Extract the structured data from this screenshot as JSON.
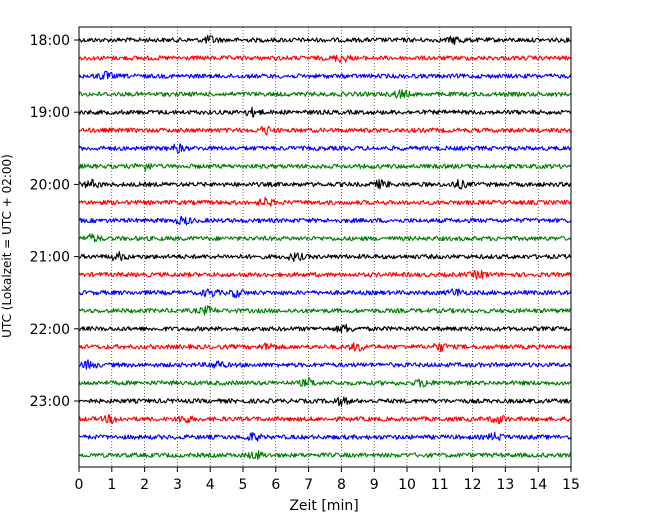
{
  "chart_data": {
    "type": "line",
    "title": "",
    "xlabel": "Zeit  [min]",
    "ylabel": "UTC (Lokalzeit = UTC + 02:00)",
    "xlim": [
      0,
      15
    ],
    "xticks": [
      "0",
      "1",
      "2",
      "3",
      "4",
      "5",
      "6",
      "7",
      "8",
      "9",
      "10",
      "11",
      "12",
      "13",
      "14",
      "15"
    ],
    "x_grid": "dotted vertical lines at each minute",
    "trace_interval_min": 15,
    "ytick_labels": [
      "18:00",
      "19:00",
      "20:00",
      "21:00",
      "22:00",
      "23:00"
    ],
    "trace_colors": [
      "#000000",
      "#ff0000",
      "#0000ff",
      "#008000"
    ],
    "traces": [
      {
        "start": "18:00",
        "color": "#000000",
        "events_min": [
          4.0,
          11.5
        ]
      },
      {
        "start": "18:15",
        "color": "#ff0000",
        "events_min": [
          8.0
        ]
      },
      {
        "start": "18:30",
        "color": "#0000ff",
        "events_min": [
          0.8
        ]
      },
      {
        "start": "18:45",
        "color": "#008000",
        "events_min": [
          9.8
        ]
      },
      {
        "start": "19:00",
        "color": "#000000",
        "events_min": [
          5.3
        ]
      },
      {
        "start": "19:15",
        "color": "#ff0000",
        "events_min": [
          5.7
        ]
      },
      {
        "start": "19:30",
        "color": "#0000ff",
        "events_min": [
          3.0
        ]
      },
      {
        "start": "19:45",
        "color": "#008000",
        "events_min": [
          2.0
        ]
      },
      {
        "start": "20:00",
        "color": "#000000",
        "events_min": [
          0.4,
          9.2,
          11.6
        ]
      },
      {
        "start": "20:15",
        "color": "#ff0000",
        "events_min": [
          5.7
        ]
      },
      {
        "start": "20:30",
        "color": "#0000ff",
        "events_min": [
          3.2
        ]
      },
      {
        "start": "20:45",
        "color": "#008000",
        "events_min": [
          0.4
        ]
      },
      {
        "start": "21:00",
        "color": "#000000",
        "events_min": [
          1.2,
          6.6
        ]
      },
      {
        "start": "21:15",
        "color": "#ff0000",
        "events_min": [
          12.2
        ]
      },
      {
        "start": "21:30",
        "color": "#0000ff",
        "events_min": [
          4.0,
          4.8,
          11.5
        ]
      },
      {
        "start": "21:45",
        "color": "#008000",
        "events_min": [
          3.9
        ]
      },
      {
        "start": "22:00",
        "color": "#000000",
        "events_min": [
          8.1
        ]
      },
      {
        "start": "22:15",
        "color": "#ff0000",
        "events_min": [
          5.8,
          8.5,
          11.0
        ]
      },
      {
        "start": "22:30",
        "color": "#0000ff",
        "events_min": [
          0.3,
          4.2
        ]
      },
      {
        "start": "22:45",
        "color": "#008000",
        "events_min": [
          7.0,
          10.5
        ]
      },
      {
        "start": "23:00",
        "color": "#000000",
        "events_min": [
          8.0
        ]
      },
      {
        "start": "23:15",
        "color": "#ff0000",
        "events_min": [
          1.0,
          3.2,
          12.8
        ]
      },
      {
        "start": "23:30",
        "color": "#0000ff",
        "events_min": [
          5.3,
          12.7
        ]
      },
      {
        "start": "23:45",
        "color": "#008000",
        "events_min": [
          5.4
        ]
      }
    ]
  }
}
